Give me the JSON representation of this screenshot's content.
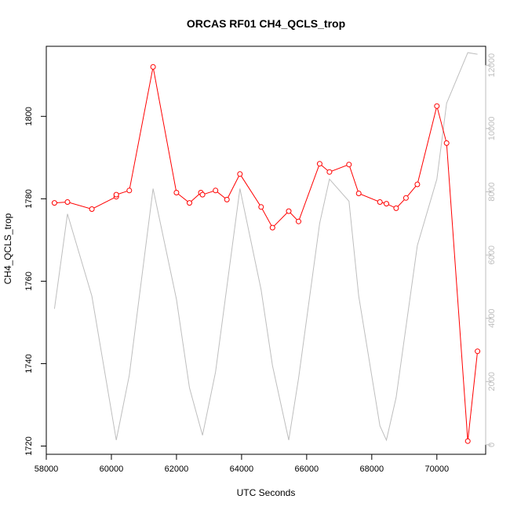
{
  "chart_data": {
    "type": "line",
    "title": "ORCAS RF01 CH4_QCLS_trop",
    "xlabel": "UTC Seconds",
    "ylabel": "CH4_QCLS_trop",
    "xlim": [
      58000,
      71500
    ],
    "ylim": [
      1718,
      1817
    ],
    "x_ticks": [
      58000,
      60000,
      62000,
      64000,
      66000,
      68000,
      70000
    ],
    "y_ticks": [
      1720,
      1740,
      1760,
      1780,
      1800
    ],
    "y2_ticks": [
      0,
      2000,
      4000,
      6000,
      8000,
      10000,
      12000
    ],
    "y2lim": [
      -300,
      12600
    ],
    "grid": false,
    "colors": {
      "ch4": "#ff0000",
      "altitude": "#bebebe",
      "axis": "#000000",
      "axis_right": "#bebebe"
    },
    "series": [
      {
        "axis": "left",
        "style": "line-with-open-circles",
        "x": [
          58250,
          58650,
          59400,
          60150,
          60150,
          60550,
          61280,
          62000,
          62400,
          62750,
          62800,
          63200,
          63550,
          63950,
          64600,
          64950,
          65450,
          65750,
          66400,
          66700,
          67300,
          67600,
          68250,
          68450,
          68750,
          69050,
          69400,
          70000,
          70300,
          70950,
          71250
        ],
        "y": [
          1779,
          1779.2,
          1777.5,
          1780.5,
          1781,
          1782,
          1812,
          1781.5,
          1779,
          1781.5,
          1781,
          1782,
          1779.8,
          1786,
          1778,
          1773,
          1777,
          1774.5,
          1788.5,
          1786.5,
          1788.3,
          1781.3,
          1779.2,
          1778.8,
          1777.7,
          1780.2,
          1783.5,
          1802.5,
          1793.5,
          1721.2,
          1743
        ]
      },
      {
        "axis": "right",
        "style": "line",
        "x": [
          58250,
          58650,
          59400,
          60150,
          60550,
          61280,
          62000,
          62400,
          62800,
          63200,
          63950,
          64600,
          64950,
          65450,
          65750,
          66400,
          66700,
          67300,
          67600,
          68250,
          68450,
          68750,
          69400,
          70000,
          70300,
          70950,
          71250
        ],
        "y": [
          4300,
          7300,
          4700,
          150,
          2200,
          8100,
          4600,
          1800,
          300,
          2300,
          8100,
          4900,
          2500,
          150,
          2100,
          7000,
          8400,
          7700,
          4700,
          600,
          150,
          1500,
          6300,
          8400,
          10800,
          12400,
          12350
        ]
      }
    ]
  }
}
